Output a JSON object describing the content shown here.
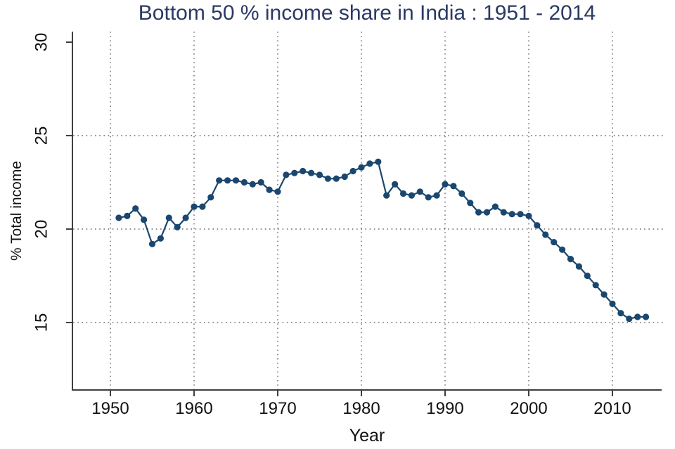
{
  "colors": {
    "title": "#2b3a64",
    "series": "#1a476f",
    "axis": "#3f3f3f",
    "grid": "#4a4a4a",
    "tick_label": "#111111",
    "background": "#ffffff"
  },
  "chart_data": {
    "type": "line",
    "title": "Bottom 50 % income share in India : 1951 - 2014",
    "xlabel": "Year",
    "ylabel": "% Total income",
    "series_name": "Bottom 50% income share",
    "marker": "circle",
    "grid": "dotted",
    "legend": false,
    "xticks": [
      1950,
      1960,
      1970,
      1980,
      1990,
      2000,
      2010
    ],
    "yticks": [
      30,
      25,
      20,
      15
    ],
    "gridlines_y": [
      25,
      20,
      15
    ],
    "xlim": [
      1945.5,
      2016
    ],
    "ylim": [
      11.4,
      30.6
    ],
    "x": [
      1951,
      1952,
      1953,
      1954,
      1955,
      1956,
      1957,
      1958,
      1959,
      1960,
      1961,
      1962,
      1963,
      1964,
      1965,
      1966,
      1967,
      1968,
      1969,
      1970,
      1971,
      1972,
      1973,
      1974,
      1975,
      1976,
      1977,
      1978,
      1979,
      1980,
      1981,
      1982,
      1983,
      1984,
      1985,
      1986,
      1987,
      1988,
      1989,
      1990,
      1991,
      1992,
      1993,
      1994,
      1995,
      1996,
      1997,
      1998,
      1999,
      2000,
      2001,
      2002,
      2003,
      2004,
      2005,
      2006,
      2007,
      2008,
      2009,
      2010,
      2011,
      2012,
      2013,
      2014
    ],
    "values": [
      20.6,
      20.7,
      21.1,
      20.5,
      19.2,
      19.5,
      20.6,
      20.1,
      20.6,
      21.2,
      21.2,
      21.7,
      22.6,
      22.6,
      22.6,
      22.5,
      22.4,
      22.5,
      22.1,
      22.0,
      22.9,
      23.0,
      23.1,
      23.0,
      22.9,
      22.7,
      22.7,
      22.8,
      23.1,
      23.3,
      23.5,
      23.6,
      21.8,
      22.4,
      21.9,
      21.8,
      22.0,
      21.7,
      21.8,
      22.4,
      22.3,
      21.9,
      21.4,
      20.9,
      20.9,
      21.2,
      20.9,
      20.8,
      20.8,
      20.7,
      20.2,
      19.7,
      19.3,
      18.9,
      18.4,
      18.0,
      17.5,
      17.0,
      16.5,
      16.0,
      15.5,
      15.2,
      15.3,
      15.3
    ]
  }
}
